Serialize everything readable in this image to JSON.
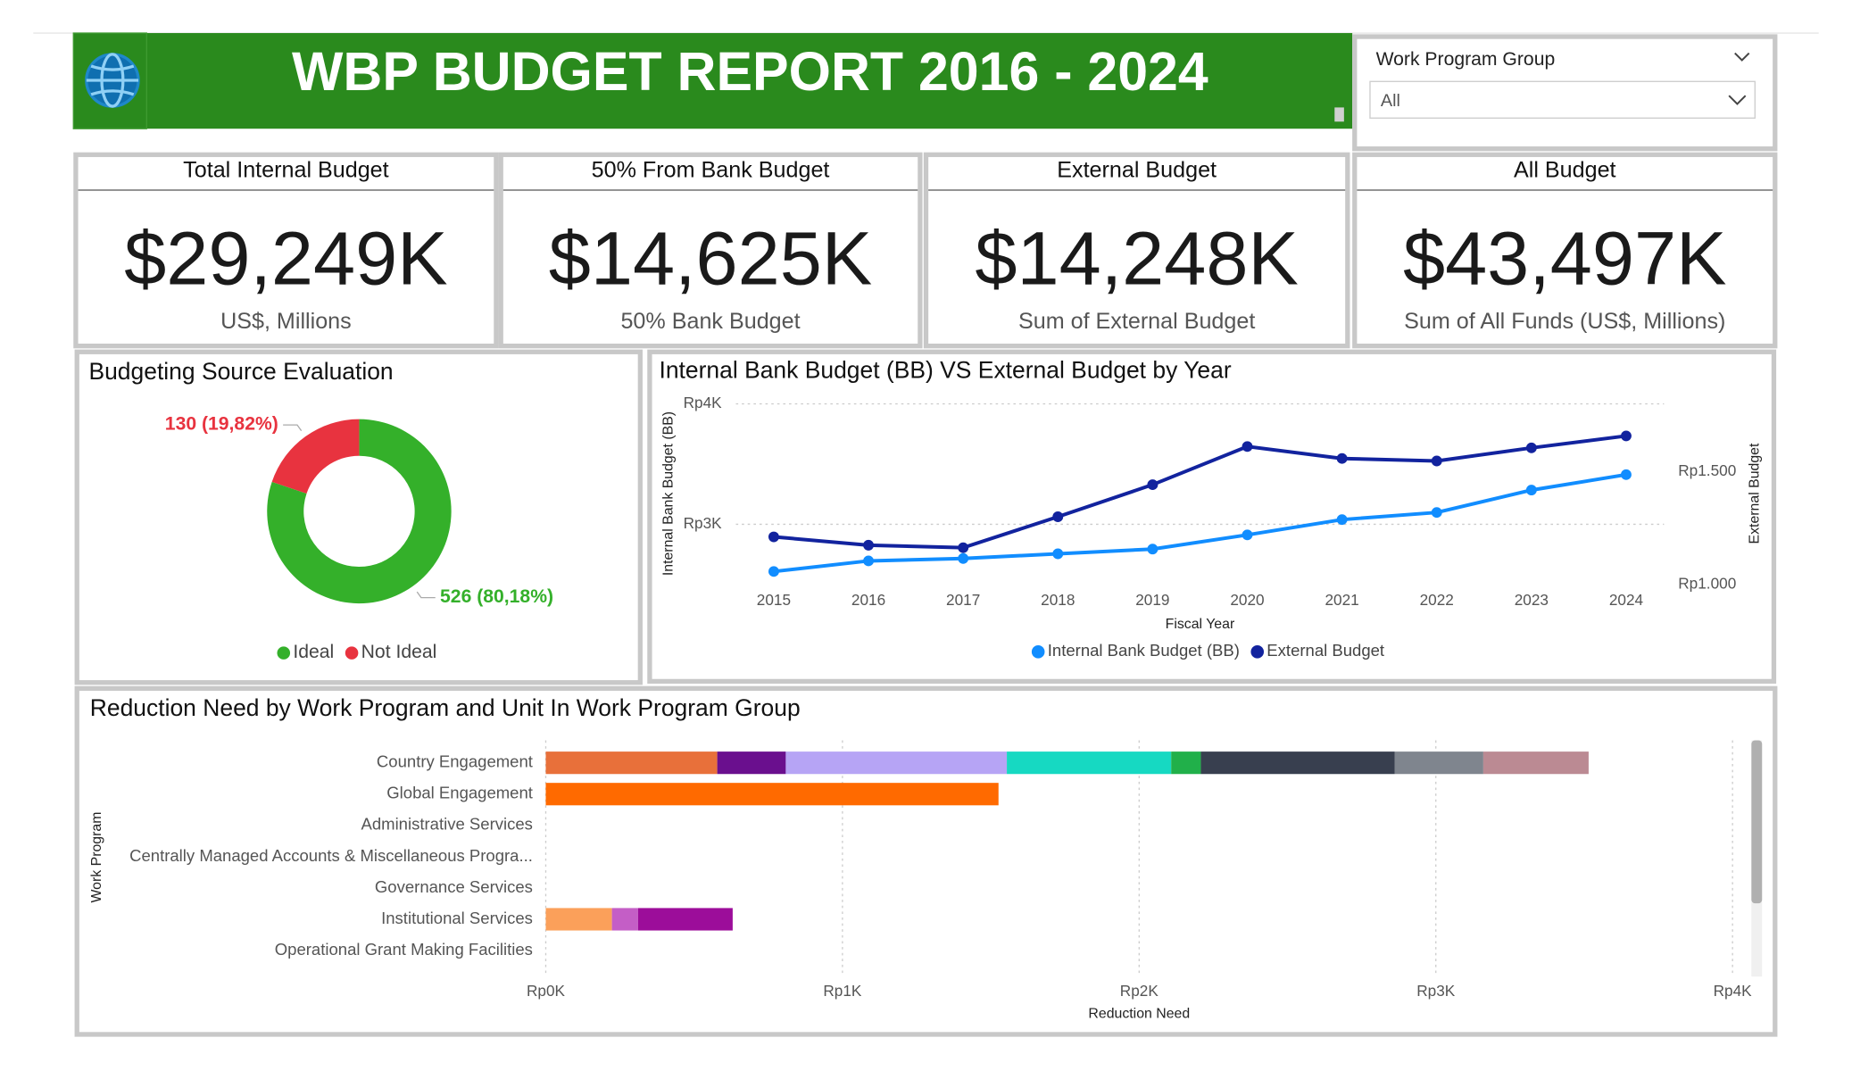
{
  "header": {
    "title": "WBP BUDGET REPORT 2016 - 2024"
  },
  "filter": {
    "label": "Work Program Group",
    "value": "All"
  },
  "cards": [
    {
      "title": "Total Internal Budget",
      "value": "$29,249K",
      "subtitle": "US$, Millions"
    },
    {
      "title": "50% From Bank Budget",
      "value": "$14,625K",
      "subtitle": "50% Bank Budget"
    },
    {
      "title": "External Budget",
      "value": "$14,248K",
      "subtitle": "Sum of External Budget"
    },
    {
      "title": "All Budget",
      "value": "$43,497K",
      "subtitle": "Sum of All Funds (US$, Millions)"
    }
  ],
  "chart_data": [
    {
      "type": "donut",
      "title": "Budgeting Source Evaluation",
      "categories": [
        "Ideal",
        "Not Ideal"
      ],
      "values": [
        526,
        130
      ],
      "value_labels": [
        "526 (80,18%)",
        "130 (19,82%)"
      ],
      "colors": [
        "#34b02a",
        "#e8333f"
      ]
    },
    {
      "type": "line",
      "title": "Internal Bank Budget (BB) VS External Budget by Year",
      "x": [
        2015,
        2016,
        2017,
        2018,
        2019,
        2020,
        2021,
        2022,
        2023,
        2024
      ],
      "xlim": [
        2014.6,
        2024.4
      ],
      "xticks": [
        2015,
        2016,
        2017,
        2018,
        2019,
        2020,
        2021,
        2022,
        2023,
        2024
      ],
      "series": [
        {
          "name": "Internal Bank Budget (BB)",
          "color": "#118dff",
          "values": [
            2608,
            2696,
            2716,
            2755,
            2794,
            2912,
            3039,
            3098,
            3284,
            3412
          ]
        },
        {
          "name": "External Budget",
          "color": "#12239e",
          "axis": "y2",
          "values": [
            1211,
            1174,
            1163,
            1300,
            1442,
            1611,
            1558,
            1547,
            1605,
            1658
          ]
        }
      ],
      "ylim": [
        2500,
        4000
      ],
      "yticks": [
        {
          "value": 3000,
          "label": "Rp3K"
        },
        {
          "value": 4000,
          "label": "Rp4K"
        }
      ],
      "y2lim": [
        1000,
        1800
      ],
      "y2ticks": [
        {
          "value": 1000,
          "label": "Rp1.000"
        },
        {
          "value": 1500,
          "label": "Rp1.500"
        }
      ],
      "xlabel": "Fiscal Year",
      "ylabel": "Internal Bank Budget (BB)",
      "y2label": "External Budget",
      "grid": true
    },
    {
      "type": "bar",
      "orientation": "horizontal",
      "stacked": true,
      "title": "Reduction Need by Work Program and Unit In Work Program Group",
      "categories": [
        "Country Engagement",
        "Global Engagement",
        "Administrative Services",
        "Centrally Managed Accounts & Miscellaneous Progra...",
        "Governance Services",
        "Institutional Services",
        "Operational Grant Making Facilities"
      ],
      "series": [
        {
          "color": "#e8703a",
          "values": [
            578,
            null,
            null,
            null,
            null,
            null,
            null
          ]
        },
        {
          "color": "#6a0f8e",
          "values": [
            231,
            null,
            null,
            null,
            null,
            null,
            null
          ]
        },
        {
          "color": "#b6a4f5",
          "values": [
            745,
            null,
            null,
            null,
            null,
            null,
            null
          ]
        },
        {
          "color": "#16d9c2",
          "values": [
            554,
            null,
            null,
            null,
            null,
            null,
            null
          ]
        },
        {
          "color": "#21b04a",
          "values": [
            100,
            null,
            null,
            null,
            null,
            null,
            null
          ]
        },
        {
          "color": "#383f4f",
          "values": [
            653,
            null,
            null,
            null,
            null,
            null,
            null
          ]
        },
        {
          "color": "#7f858e",
          "values": [
            299,
            null,
            null,
            null,
            null,
            null,
            null
          ]
        },
        {
          "color": "#bb8a93",
          "values": [
            355,
            null,
            null,
            null,
            null,
            null,
            null
          ]
        },
        {
          "color": "#ff6a00",
          "values": [
            null,
            1526,
            null,
            null,
            null,
            null,
            null
          ]
        },
        {
          "color": "#fba05a",
          "values": [
            null,
            null,
            null,
            null,
            null,
            223,
            null
          ]
        },
        {
          "color": "#c45ec6",
          "values": [
            null,
            null,
            null,
            null,
            null,
            88,
            null
          ]
        },
        {
          "color": "#9c0d9a",
          "values": [
            null,
            null,
            null,
            null,
            null,
            319,
            null
          ]
        }
      ],
      "xlim": [
        0,
        4000
      ],
      "xticks": [
        {
          "value": 0,
          "label": "Rp0K"
        },
        {
          "value": 1000,
          "label": "Rp1K"
        },
        {
          "value": 2000,
          "label": "Rp2K"
        },
        {
          "value": 3000,
          "label": "Rp3K"
        },
        {
          "value": 4000,
          "label": "Rp4K"
        }
      ],
      "xlabel": "Reduction Need",
      "ylabel": "Work Program",
      "grid": true
    }
  ]
}
